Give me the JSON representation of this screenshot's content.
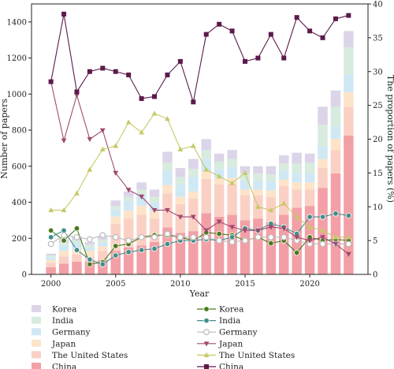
{
  "chart_data": {
    "type": "bar",
    "combo": "stacked bars (Number of papers, left axis) + lines (The proportion of papers (%), right axis)",
    "title": "",
    "xlabel": "Year",
    "ylabel_left": "Number of papers",
    "ylabel_right": "The proportion of papers (%)",
    "ylim_left": [
      0,
      1500
    ],
    "ylim_right": [
      0,
      40
    ],
    "xlim": [
      1998.5,
      2024.5
    ],
    "x": [
      2000,
      2001,
      2002,
      2003,
      2004,
      2005,
      2006,
      2007,
      2008,
      2009,
      2010,
      2011,
      2012,
      2013,
      2014,
      2015,
      2016,
      2017,
      2018,
      2019,
      2020,
      2021,
      2022,
      2023
    ],
    "x_ticks": [
      2000,
      2005,
      2010,
      2015,
      2020
    ],
    "y_ticks_left": [
      0,
      200,
      400,
      600,
      800,
      1000,
      1200,
      1400
    ],
    "y_ticks_right": [
      0,
      5,
      10,
      15,
      20,
      25,
      30,
      35,
      40
    ],
    "grid": false,
    "bar_series": [
      {
        "name": "China",
        "color": "#f2a0a6",
        "values": [
          40,
          60,
          70,
          70,
          80,
          130,
          150,
          160,
          180,
          260,
          230,
          240,
          340,
          320,
          330,
          300,
          310,
          290,
          330,
          370,
          380,
          480,
          560,
          770
        ]
      },
      {
        "name": "The United States",
        "color": "#fbd0c4",
        "values": [
          25,
          40,
          40,
          30,
          50,
          150,
          160,
          170,
          130,
          190,
          160,
          180,
          190,
          180,
          170,
          140,
          130,
          140,
          160,
          100,
          90,
          110,
          130,
          160
        ]
      },
      {
        "name": "Japan",
        "color": "#fde3c8",
        "values": [
          15,
          30,
          30,
          30,
          25,
          40,
          45,
          50,
          40,
          45,
          40,
          40,
          40,
          35,
          35,
          30,
          30,
          35,
          35,
          40,
          40,
          50,
          60,
          80
        ]
      },
      {
        "name": "Germany",
        "color": "#cfe8f4",
        "values": [
          15,
          30,
          30,
          20,
          20,
          40,
          50,
          60,
          50,
          80,
          70,
          80,
          70,
          50,
          60,
          50,
          50,
          50,
          50,
          50,
          50,
          70,
          70,
          100
        ]
      },
      {
        "name": "India",
        "color": "#d7ebdf",
        "values": [
          10,
          15,
          20,
          15,
          15,
          20,
          25,
          30,
          30,
          45,
          40,
          45,
          50,
          40,
          45,
          40,
          40,
          40,
          40,
          55,
          60,
          120,
          110,
          150
        ]
      },
      {
        "name": "Korea",
        "color": "#dcd4e8",
        "values": [
          10,
          20,
          20,
          15,
          20,
          30,
          30,
          40,
          40,
          60,
          50,
          55,
          60,
          45,
          50,
          40,
          40,
          45,
          45,
          60,
          50,
          100,
          90,
          90
        ]
      }
    ],
    "line_series": [
      {
        "name": "Korea",
        "color": "#4a7a1e",
        "marker": "circle",
        "values": [
          6.5,
          5.0,
          6.8,
          1.5,
          1.8,
          4.2,
          4.5,
          5.5,
          5.8,
          5.8,
          5.5,
          5.0,
          6.2,
          6.0,
          5.8,
          5.0,
          5.5,
          4.6,
          5.0,
          3.2,
          5.5,
          5.0,
          5.2,
          5.0
        ]
      },
      {
        "name": "India",
        "color": "#3f8f8a",
        "marker": "circle",
        "values": [
          5.5,
          6.5,
          3.6,
          2.2,
          1.5,
          2.8,
          3.3,
          3.6,
          3.8,
          4.5,
          5.0,
          5.0,
          5.2,
          5.0,
          5.5,
          6.8,
          6.5,
          7.5,
          7.0,
          6.0,
          8.5,
          8.5,
          9.0,
          8.7
        ]
      },
      {
        "name": "Germany",
        "color": "#bbbbbb",
        "marker": "open-circle",
        "values": [
          4.5,
          5.8,
          5.5,
          5.2,
          5.8,
          5.5,
          5.0,
          5.5,
          5.5,
          6.0,
          5.5,
          5.5,
          5.5,
          5.0,
          4.8,
          5.0,
          5.5,
          5.5,
          5.5,
          5.0,
          4.5,
          4.5,
          4.5,
          4.5
        ]
      },
      {
        "name": "Japan",
        "color": "#a04a70",
        "marker": "triangle-down",
        "values": [
          28.5,
          19.8,
          26.5,
          20.0,
          21.3,
          15.0,
          12.5,
          11.5,
          9.5,
          9.5,
          8.5,
          8.5,
          6.5,
          7.8,
          7.0,
          6.5,
          6.5,
          7.0,
          6.8,
          5.5,
          5.0,
          5.5,
          4.5,
          3.0
        ]
      },
      {
        "name": "The United States",
        "color": "#c8c868",
        "marker": "triangle-up",
        "values": [
          9.5,
          9.5,
          12.0,
          15.5,
          18.5,
          19.0,
          22.5,
          21.0,
          23.8,
          23.0,
          18.5,
          19.0,
          15.5,
          14.5,
          13.5,
          15.0,
          10.0,
          9.5,
          10.5,
          8.5,
          7.0,
          6.5,
          5.5,
          5.5
        ]
      },
      {
        "name": "China",
        "color": "#5c1a4a",
        "marker": "square",
        "values": [
          28.5,
          38.5,
          27.0,
          30.0,
          30.5,
          30.0,
          29.5,
          26.0,
          26.3,
          29.5,
          31.5,
          25.5,
          35.5,
          37.0,
          36.0,
          31.5,
          32.0,
          35.5,
          32.0,
          38.0,
          36.0,
          35.0,
          37.8,
          38.3
        ]
      }
    ],
    "legend": {
      "placement": "bottom",
      "bar_entries": [
        "Korea",
        "India",
        "Germany",
        "Japan",
        "The United States",
        "China"
      ],
      "line_entries": [
        "Korea",
        "India",
        "Germany",
        "Japan",
        "The United States",
        "China"
      ]
    }
  }
}
